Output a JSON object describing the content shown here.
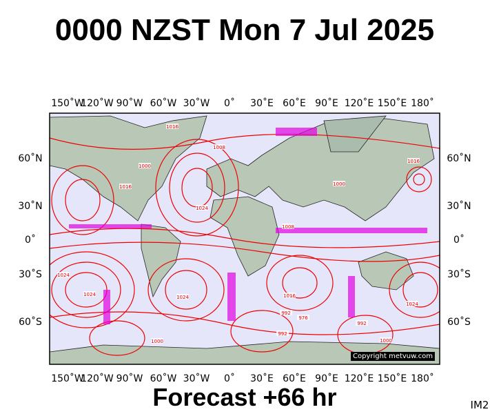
{
  "header": {
    "title": "0000 NZST Mon 7 Jul 2025"
  },
  "map": {
    "longitude_labels": [
      "150˚W",
      "120˚W",
      "90˚W",
      "60˚W",
      "30˚W",
      "0˚",
      "30˚E",
      "60˚E",
      "90˚E",
      "120˚E",
      "150˚E",
      "180˚"
    ],
    "latitude_labels": [
      "60˚N",
      "30˚N",
      "0˚",
      "30˚S",
      "60˚S"
    ],
    "isobar_labels": [
      "1008",
      "1016",
      "1024",
      "1016",
      "1000",
      "1008",
      "1000",
      "1016",
      "1024",
      "1024",
      "1016",
      "992",
      "1024",
      "1000",
      "976",
      "992",
      "1024",
      "1000",
      "992"
    ],
    "copyright": "Copyright metvuw.com"
  },
  "footer": {
    "forecast": "Forecast +66 hr",
    "corner": "IM2"
  }
}
